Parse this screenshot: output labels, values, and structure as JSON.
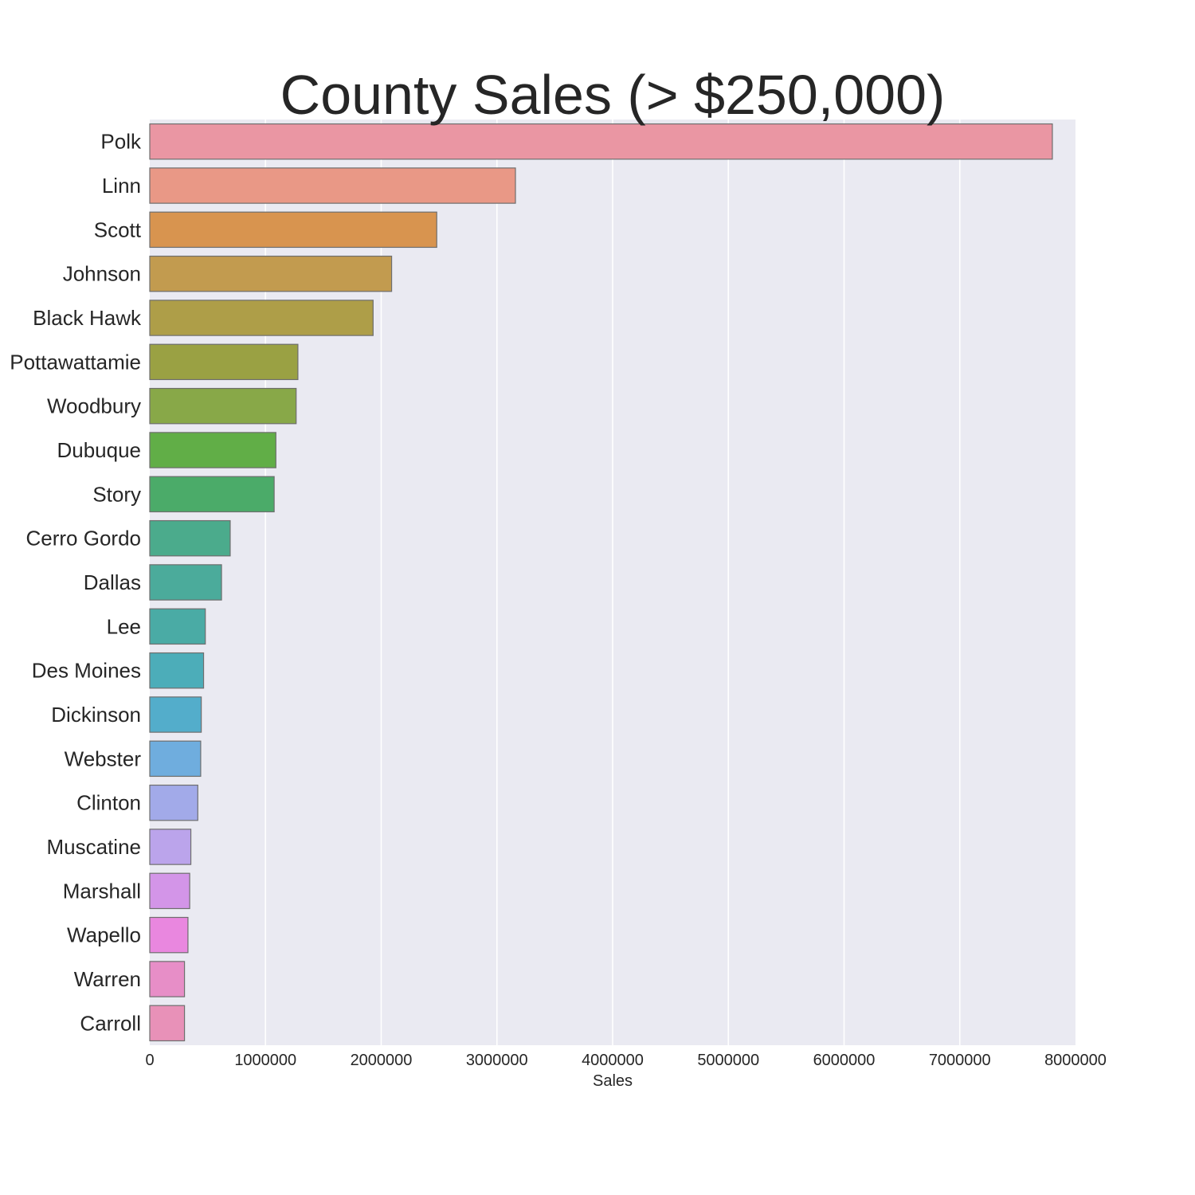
{
  "chart_data": {
    "type": "bar",
    "orientation": "horizontal",
    "title": "County Sales (> $250,000)",
    "xlabel": "Sales",
    "ylabel": "",
    "xlim": [
      0,
      8000000
    ],
    "xticks": [
      0,
      1000000,
      2000000,
      3000000,
      4000000,
      5000000,
      6000000,
      7000000,
      8000000
    ],
    "grid": true,
    "background": "#eaeaf2",
    "categories": [
      "Polk",
      "Linn",
      "Scott",
      "Johnson",
      "Black Hawk",
      "Pottawattamie",
      "Woodbury",
      "Dubuque",
      "Story",
      "Cerro Gordo",
      "Dallas",
      "Lee",
      "Des Moines",
      "Dickinson",
      "Webster",
      "Clinton",
      "Muscatine",
      "Marshall",
      "Wapello",
      "Warren",
      "Carroll"
    ],
    "values": [
      7800000,
      3160000,
      2480000,
      2090000,
      1930000,
      1280000,
      1265000,
      1090000,
      1075000,
      695000,
      620000,
      480000,
      465000,
      445000,
      440000,
      415000,
      355000,
      345000,
      330000,
      300000,
      300000
    ],
    "colors": [
      "#ea96a3",
      "#e99886",
      "#d8944f",
      "#c29b4f",
      "#ae9e48",
      "#9aa143",
      "#88a848",
      "#61ae47",
      "#4bab69",
      "#4bab8c",
      "#4bab9b",
      "#4aaba5",
      "#4cadb9",
      "#53adcb",
      "#6fadde",
      "#a2aae9",
      "#bba4eb",
      "#d395e8",
      "#e987df",
      "#e78ec7",
      "#e891b8"
    ]
  }
}
